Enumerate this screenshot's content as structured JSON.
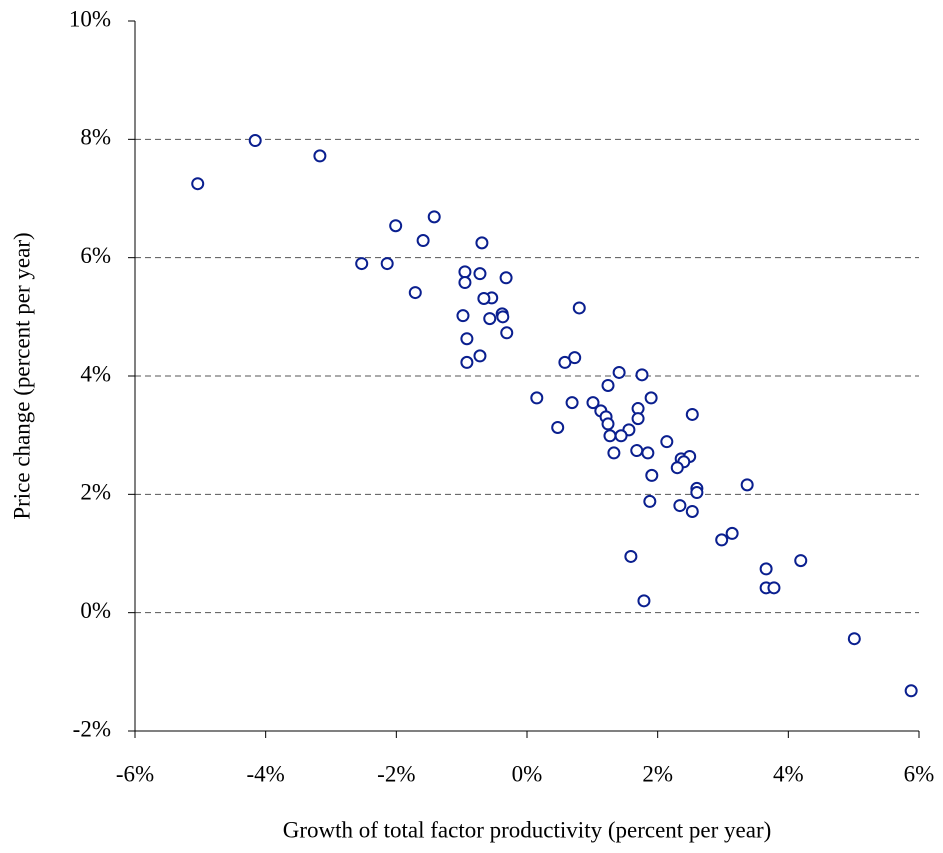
{
  "chart_data": {
    "type": "scatter",
    "x_label": "Growth of total factor productivity (percent per year)",
    "y_label": "Price change (percent per year)",
    "x": [
      -5.04,
      -4.16,
      -3.17,
      -2.01,
      -1.42,
      -1.59,
      -0.69,
      -2.53,
      -2.14,
      -0.95,
      -0.72,
      -0.32,
      -0.95,
      -1.71,
      -0.54,
      -0.66,
      0.8,
      -0.98,
      -0.38,
      -0.37,
      -0.57,
      -0.31,
      -0.92,
      -0.72,
      -0.92,
      0.58,
      0.73,
      1.41,
      1.76,
      1.24,
      0.15,
      1.9,
      0.69,
      1.01,
      1.13,
      1.7,
      2.53,
      1.21,
      1.7,
      1.24,
      0.47,
      1.56,
      1.27,
      1.44,
      2.14,
      1.33,
      1.68,
      1.85,
      2.36,
      2.49,
      2.4,
      2.3,
      1.91,
      3.37,
      2.6,
      2.6,
      1.88,
      2.34,
      2.53,
      3.14,
      2.98,
      1.59,
      3.66,
      4.19,
      3.66,
      3.78,
      1.79,
      5.01,
      5.88
    ],
    "values": [
      7.25,
      7.98,
      7.72,
      6.54,
      6.69,
      6.29,
      6.25,
      5.9,
      5.9,
      5.76,
      5.73,
      5.66,
      5.58,
      5.41,
      5.32,
      5.31,
      5.15,
      5.02,
      5.05,
      5.0,
      4.97,
      4.73,
      4.63,
      4.34,
      4.23,
      4.23,
      4.31,
      4.06,
      4.02,
      3.84,
      3.63,
      3.63,
      3.55,
      3.55,
      3.41,
      3.45,
      3.35,
      3.31,
      3.28,
      3.19,
      3.13,
      3.09,
      2.99,
      2.99,
      2.89,
      2.7,
      2.74,
      2.7,
      2.6,
      2.64,
      2.55,
      2.45,
      2.32,
      2.16,
      2.1,
      2.03,
      1.88,
      1.81,
      1.71,
      1.34,
      1.23,
      0.95,
      0.74,
      0.88,
      0.42,
      0.42,
      0.2,
      -0.44,
      -1.32
    ],
    "color": "#0a1f8f",
    "xlim": [
      -6,
      6
    ],
    "xticks": [
      {
        "value": -6,
        "label": "-6%"
      },
      {
        "value": -4,
        "label": "-4%"
      },
      {
        "value": -2,
        "label": "-2%"
      },
      {
        "value": 0,
        "label": "0%"
      },
      {
        "value": 2,
        "label": "2%"
      },
      {
        "value": 4,
        "label": "4%"
      },
      {
        "value": 6,
        "label": "6%"
      }
    ],
    "ylim": [
      -2,
      10
    ],
    "yticks": [
      {
        "value": -2,
        "label": "-2%"
      },
      {
        "value": 0,
        "label": "0%"
      },
      {
        "value": 2,
        "label": "2%"
      },
      {
        "value": 4,
        "label": "4%"
      },
      {
        "value": 6,
        "label": "6%"
      },
      {
        "value": 8,
        "label": "8%"
      },
      {
        "value": 10,
        "label": "10%"
      }
    ],
    "grid": true
  }
}
